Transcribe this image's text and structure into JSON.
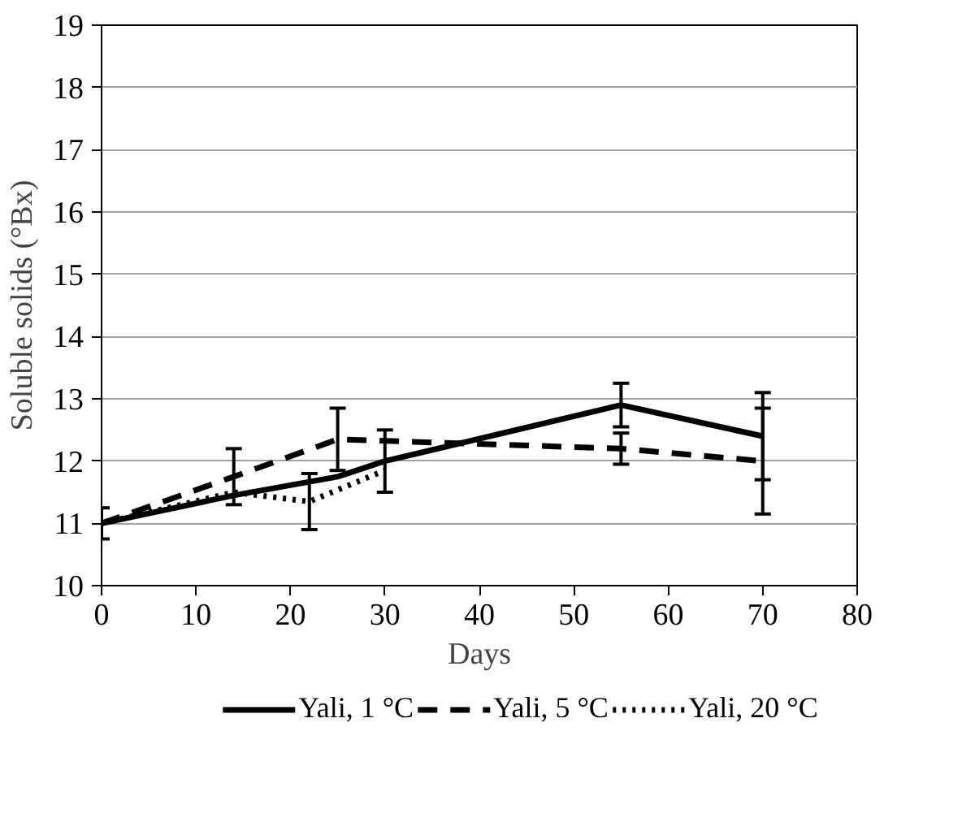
{
  "chart_data": {
    "type": "line",
    "xlabel": "Days",
    "ylabel": "Soluble solids (°Bx)",
    "xlim": [
      0,
      80
    ],
    "xticks": [
      0,
      10,
      20,
      30,
      40,
      50,
      60,
      70,
      80
    ],
    "ylim": [
      10,
      19
    ],
    "yticks": [
      10,
      11,
      12,
      13,
      14,
      15,
      16,
      17,
      18,
      19
    ],
    "grid": "y",
    "legend": "bottom",
    "marker": "none",
    "series": [
      {
        "name": "Yali, 1 °C",
        "color": "#000000",
        "line_style": "solid",
        "x": [
          0,
          14,
          25,
          30,
          55,
          70
        ],
        "values": [
          11.0,
          11.45,
          11.75,
          12.0,
          12.9,
          12.4
        ],
        "errors": [
          0.25,
          null,
          null,
          0.5,
          0.35,
          0.7
        ]
      },
      {
        "name": "Yali, 5 °C",
        "color": "#000000",
        "line_style": "dashed",
        "x": [
          0,
          14,
          25,
          55,
          70
        ],
        "values": [
          11.0,
          11.75,
          12.35,
          12.2,
          12.0
        ],
        "errors": [
          null,
          0.45,
          0.5,
          0.25,
          0.85
        ]
      },
      {
        "name": "Yali, 20 °C",
        "color": "#000000",
        "line_style": "dotted",
        "x": [
          0,
          14,
          22,
          30
        ],
        "values": [
          11.0,
          11.5,
          11.35,
          11.85
        ],
        "errors": [
          null,
          null,
          0.45,
          null
        ]
      }
    ]
  }
}
